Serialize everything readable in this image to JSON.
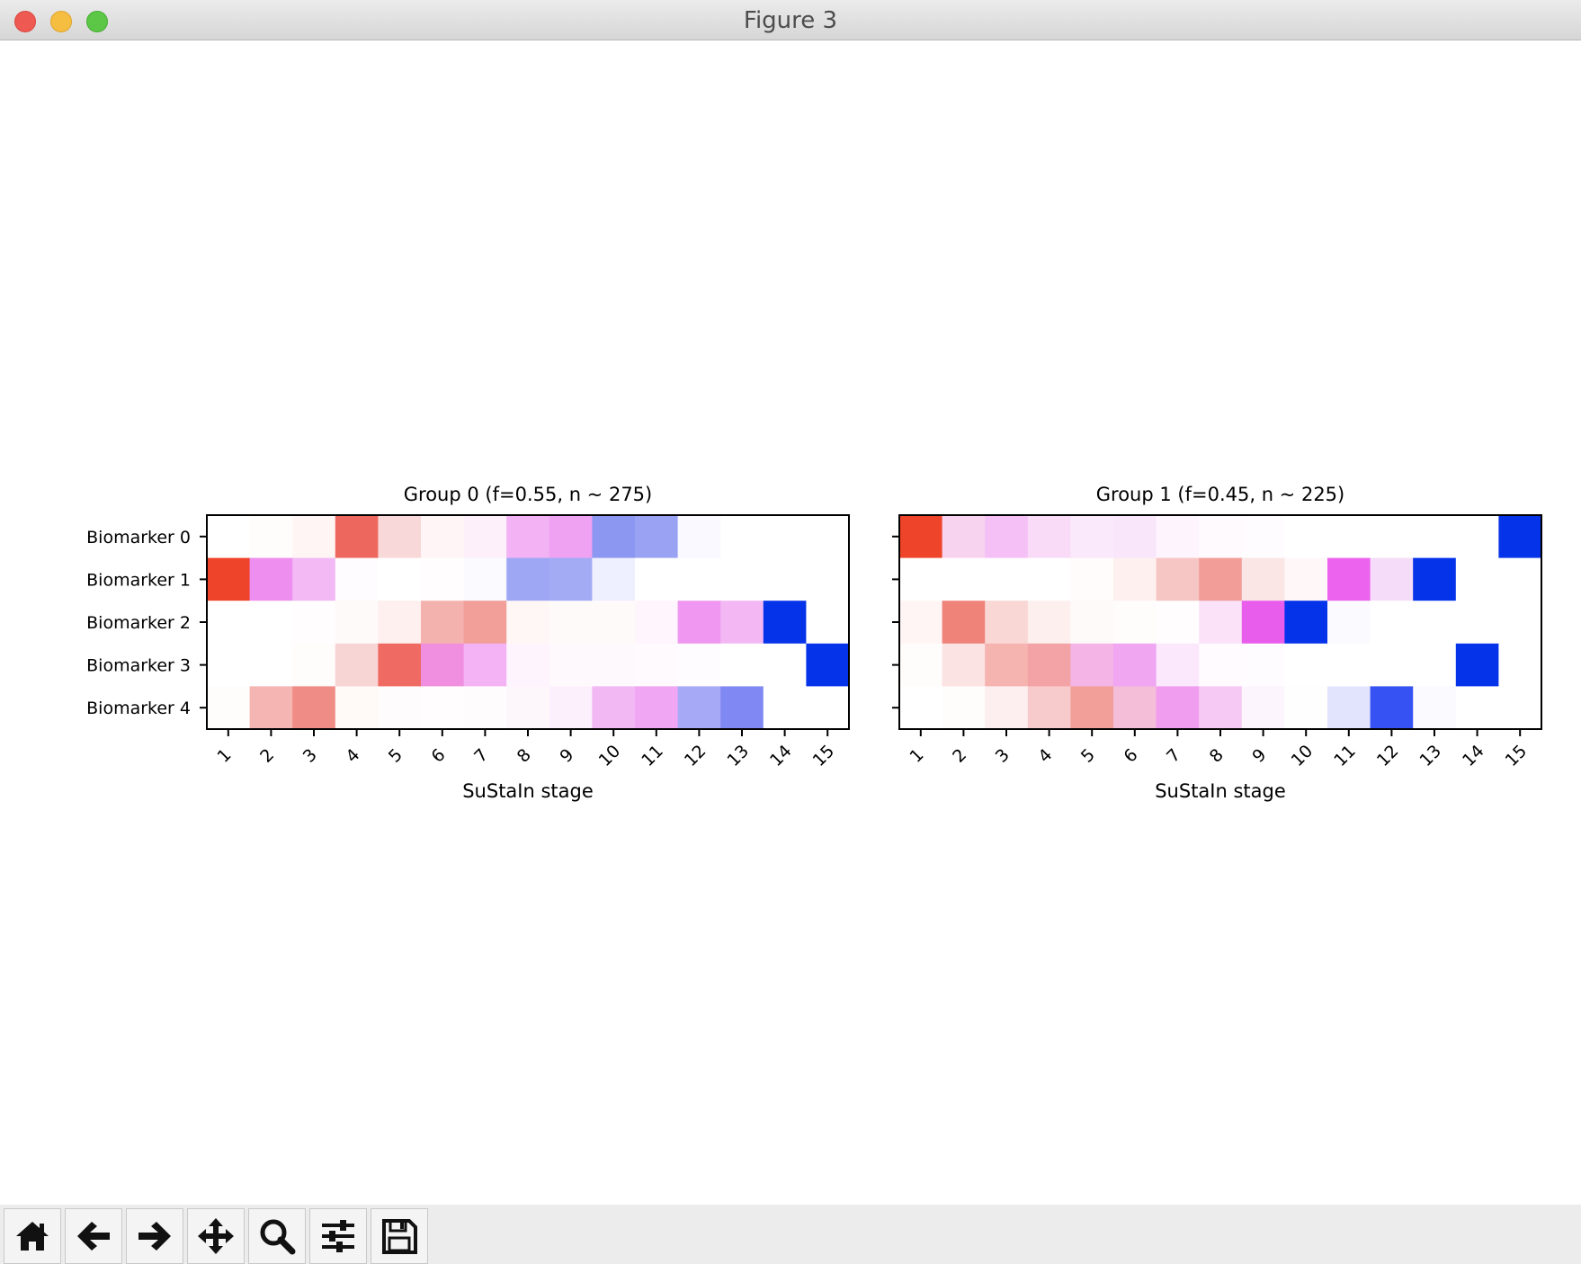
{
  "window": {
    "title": "Figure 3",
    "controls": [
      "close",
      "minimize",
      "zoom"
    ]
  },
  "toolbar": {
    "buttons": [
      {
        "name": "home-icon",
        "action": "home"
      },
      {
        "name": "back-arrow-icon",
        "action": "back"
      },
      {
        "name": "forward-arrow-icon",
        "action": "forward"
      },
      {
        "name": "pan-move-icon",
        "action": "pan"
      },
      {
        "name": "zoom-magnifier-icon",
        "action": "zoom"
      },
      {
        "name": "subplots-sliders-icon",
        "action": "configure subplots"
      },
      {
        "name": "save-floppy-icon",
        "action": "save"
      }
    ]
  },
  "chart_data": [
    {
      "type": "heatmap",
      "title": "Group 0 (f=0.55, n ~ 275)",
      "xlabel": "SuStaIn stage",
      "ylabel": "",
      "x_categories": [
        "1",
        "2",
        "3",
        "4",
        "5",
        "6",
        "7",
        "8",
        "9",
        "10",
        "11",
        "12",
        "13",
        "14",
        "15"
      ],
      "y_categories": [
        "Biomarker 0",
        "Biomarker 1",
        "Biomarker 2",
        "Biomarker 3",
        "Biomarker 4"
      ],
      "colors": [
        [
          "#ffffff",
          "#fffcfc",
          "#fff5f5",
          "#ee675e",
          "#f8d8d8",
          "#fff5f7",
          "#fdf0fb",
          "#f2b2f3",
          "#f0a2f2",
          "#8c97f1",
          "#9aa2f3",
          "#f9f9ff",
          "#ffffff",
          "#ffffff",
          "#ffffff"
        ],
        [
          "#ee4429",
          "#ee8eef",
          "#f3b9f5",
          "#fefcff",
          "#ffffff",
          "#fffdfd",
          "#fafaff",
          "#9ea7f4",
          "#a2abf4",
          "#eeefff",
          "#ffffff",
          "#ffffff",
          "#ffffff",
          "#ffffff",
          "#ffffff"
        ],
        [
          "#ffffff",
          "#ffffff",
          "#fffdfd",
          "#fffafa",
          "#fdf0ee",
          "#f4b2ae",
          "#f29e99",
          "#fff7f5",
          "#fffafa",
          "#fffafa",
          "#fff5fc",
          "#ef97f1",
          "#f3b7f4",
          "#0533ea",
          "#ffffff"
        ],
        [
          "#ffffff",
          "#ffffff",
          "#fffcfc",
          "#f8d5d5",
          "#ef6a63",
          "#f08ee0",
          "#f3b3f4",
          "#fdf4fe",
          "#fef9fd",
          "#fef9fd",
          "#fefafd",
          "#fefcfe",
          "#ffffff",
          "#ffffff",
          "#0533ea"
        ],
        [
          "#fffcfc",
          "#f5b5b2",
          "#f08c86",
          "#fff9f7",
          "#fefcfc",
          "#fffdfd",
          "#fefcfd",
          "#fdf7fb",
          "#fdf0fd",
          "#f2b8f4",
          "#f1a6f3",
          "#a6aaf6",
          "#8088f4",
          "#ffffff",
          "#ffffff"
        ]
      ],
      "grid": false,
      "colorbar": false
    },
    {
      "type": "heatmap",
      "title": "Group 1 (f=0.45, n ~ 225)",
      "xlabel": "SuStaIn stage",
      "ylabel": "",
      "x_categories": [
        "1",
        "2",
        "3",
        "4",
        "5",
        "6",
        "7",
        "8",
        "9",
        "10",
        "11",
        "12",
        "13",
        "14",
        "15"
      ],
      "y_categories": [
        "Biomarker 0",
        "Biomarker 1",
        "Biomarker 2",
        "Biomarker 3",
        "Biomarker 4"
      ],
      "colors": [
        [
          "#ee4429",
          "#f8d3f0",
          "#f4c0f6",
          "#f9dbf8",
          "#fae9fb",
          "#f9e6fa",
          "#fdf4fd",
          "#fefafe",
          "#fefcfe",
          "#ffffff",
          "#ffffff",
          "#ffffff",
          "#ffffff",
          "#ffffff",
          "#0533ea"
        ],
        [
          "#ffffff",
          "#ffffff",
          "#ffffff",
          "#ffffff",
          "#fffcfb",
          "#fdf0ee",
          "#f6c6c4",
          "#f29d97",
          "#fbe6e6",
          "#fff7f8",
          "#ec64ee",
          "#f5dcf8",
          "#0533ea",
          "#ffffff",
          "#ffffff"
        ],
        [
          "#fff5f5",
          "#ef837a",
          "#f8d7d4",
          "#fcefee",
          "#fffafa",
          "#fffcfc",
          "#fffdfd",
          "#fbe2f9",
          "#e95ded",
          "#0533ea",
          "#fafaff",
          "#ffffff",
          "#ffffff",
          "#ffffff",
          "#ffffff"
        ],
        [
          "#fffcfc",
          "#fbe3e3",
          "#f6b4b1",
          "#f3a2a6",
          "#f4b5e6",
          "#f0a6f1",
          "#fbe8fc",
          "#fffbff",
          "#fefcfe",
          "#ffffff",
          "#ffffff",
          "#ffffff",
          "#ffffff",
          "#0533ea",
          "#ffffff"
        ],
        [
          "#ffffff",
          "#fffcfc",
          "#fdefef",
          "#f7cbcb",
          "#f29f99",
          "#f4bed9",
          "#f09df0",
          "#f6c8f4",
          "#fcf5fd",
          "#fefefe",
          "#e2e3fd",
          "#3652f2",
          "#fafaff",
          "#ffffff",
          "#ffffff"
        ]
      ],
      "grid": false,
      "colorbar": false
    }
  ]
}
